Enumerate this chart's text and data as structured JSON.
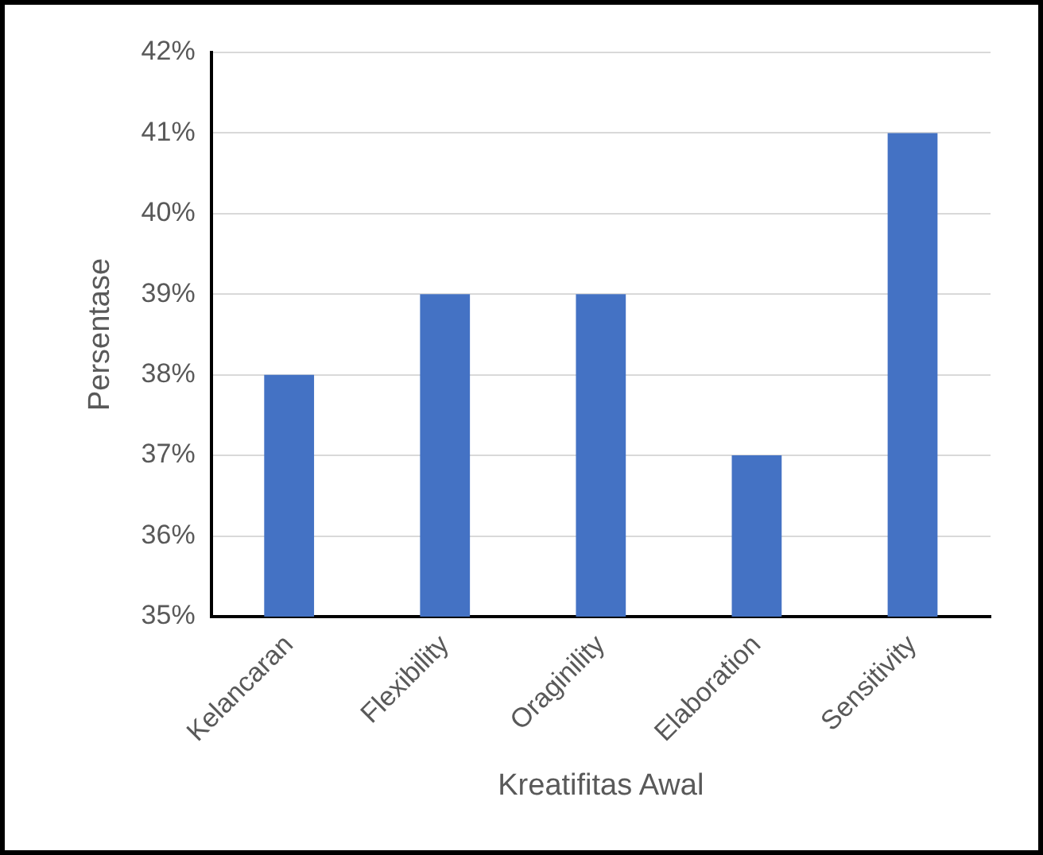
{
  "chart_data": {
    "type": "bar",
    "xlabel": "Kreatifitas Awal",
    "ylabel": "Persentase",
    "categories": [
      "Kelancaran",
      "Flexibility",
      "Oraginility",
      "Elaboration",
      "Sensitivity"
    ],
    "values": [
      38,
      39,
      39,
      37,
      41
    ],
    "color": "#4472c4",
    "ylim": [
      35,
      42
    ],
    "yticks": [
      {
        "value": 35,
        "label": "35%"
      },
      {
        "value": 36,
        "label": "36%"
      },
      {
        "value": 37,
        "label": "37%"
      },
      {
        "value": 38,
        "label": "38%"
      },
      {
        "value": 39,
        "label": "39%"
      },
      {
        "value": 40,
        "label": "40%"
      },
      {
        "value": 41,
        "label": "41%"
      },
      {
        "value": 42,
        "label": "42%"
      }
    ],
    "grid": "y",
    "legend": false
  }
}
